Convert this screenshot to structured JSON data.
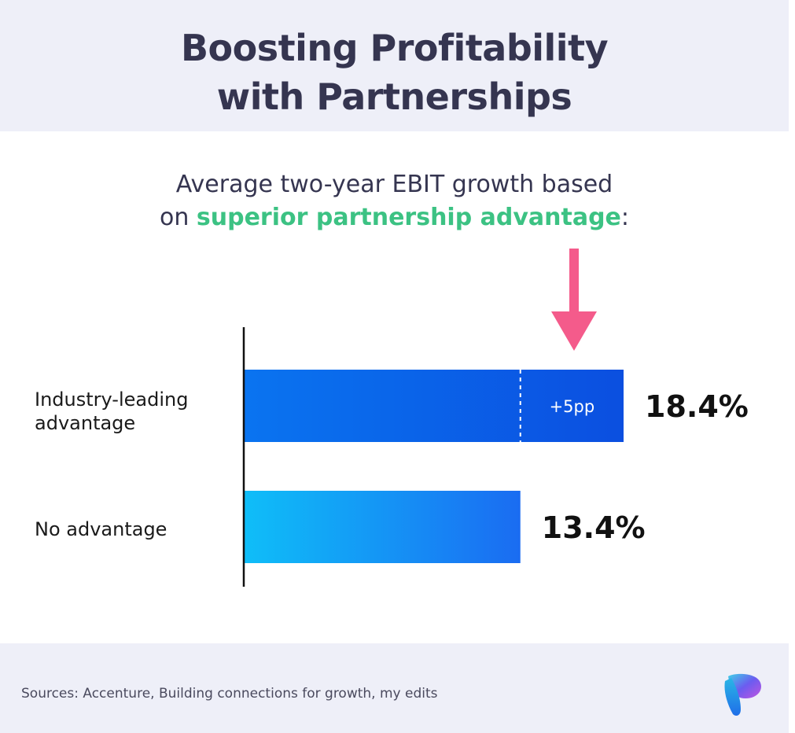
{
  "header": {
    "title_line1": "Boosting Profitability",
    "title_line2": "with Partnerships"
  },
  "subtitle": {
    "line1": "Average two-year EBIT growth based",
    "line2_prefix": "on ",
    "line2_highlight": "superior partnership advantage",
    "line2_suffix": ":"
  },
  "colors": {
    "title": "#353550",
    "highlight": "#3cc283",
    "arrow": "#f45b8b",
    "bar_top_start": "#0a74f0",
    "bar_top_end": "#0b4fe0",
    "bar_bottom_start": "#0fbef8",
    "bar_bottom_end": "#1a6cf2",
    "header_bg": "#eeeff8"
  },
  "chart_data": {
    "type": "bar",
    "orientation": "horizontal",
    "categories": [
      "Industry-leading advantage",
      "No advantage"
    ],
    "category_lines": [
      [
        "Industry-leading",
        "advantage"
      ],
      [
        "No advantage"
      ]
    ],
    "values": [
      18.4,
      13.4
    ],
    "value_labels": [
      "18.4%",
      "13.4%"
    ],
    "annotation": {
      "label": "+5pp",
      "category": "Industry-leading advantage",
      "from": 13.4,
      "to": 18.4
    },
    "xlim": [
      0,
      18.4
    ],
    "grid": false,
    "title": "",
    "xlabel": "",
    "ylabel": ""
  },
  "footer": {
    "source": "Sources: Accenture, Building connections for growth, my edits",
    "logo_icon": "brand-logo-icon"
  }
}
